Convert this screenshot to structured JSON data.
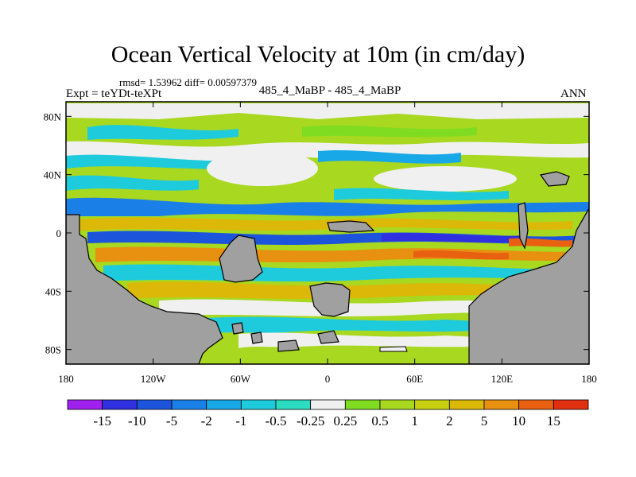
{
  "title": "Ocean Vertical Velocity at 10m (in cm/day)",
  "stats": "rmsd= 1.53962 diff= 0.00597379",
  "expt": "Expt = teYDt-teXPt",
  "center_label": "485_4_MaBP - 485_4_MaBP",
  "season": "ANN",
  "chart_data": {
    "type": "heatmap",
    "description_units": "cm/day",
    "xlim": [
      -180,
      180
    ],
    "ylim": [
      -90,
      90
    ],
    "x_ticks": [
      {
        "value": -180,
        "label": "180"
      },
      {
        "value": -120,
        "label": "120W"
      },
      {
        "value": -60,
        "label": "60W"
      },
      {
        "value": 0,
        "label": "0"
      },
      {
        "value": 60,
        "label": "60E"
      },
      {
        "value": 120,
        "label": "120E"
      },
      {
        "value": 180,
        "label": "180"
      }
    ],
    "y_ticks": [
      {
        "value": 80,
        "label": "80N"
      },
      {
        "value": 40,
        "label": "40N"
      },
      {
        "value": 0,
        "label": "0"
      },
      {
        "value": -40,
        "label": "40S"
      },
      {
        "value": -80,
        "label": "80S"
      }
    ],
    "colorbar": {
      "colors": [
        "#a020f0",
        "#3030e0",
        "#1c55dc",
        "#1a80e8",
        "#18a8e8",
        "#1ecbdc",
        "#2cdcc0",
        "#f0f0f0",
        "#80dc20",
        "#a8d820",
        "#c8d010",
        "#dcb808",
        "#e89010",
        "#e86010",
        "#e03010"
      ],
      "labels": [
        "-15",
        "-10",
        "-5",
        "-2",
        "-1",
        "-0.5",
        "-0.25",
        "0.25",
        "0.5",
        "1",
        "2",
        "5",
        "10",
        "15"
      ]
    },
    "land_color": "#a0a0a0"
  }
}
